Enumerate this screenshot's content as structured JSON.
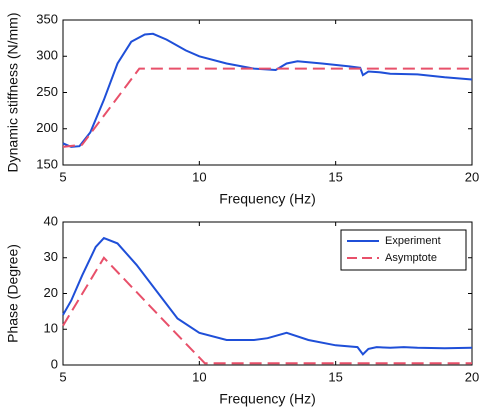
{
  "chart_data": [
    {
      "type": "line",
      "xlabel": "Frequency (Hz)",
      "ylabel": "Dynamic stiffness (N/mm)",
      "xlim": [
        5,
        20
      ],
      "ylim": [
        150,
        350
      ],
      "xticks": [
        5,
        10,
        15,
        20
      ],
      "yticks": [
        150,
        200,
        250,
        300,
        350
      ],
      "grid": false,
      "series": [
        {
          "name": "Experiment",
          "color": "#1f4fd8",
          "dash": false,
          "x": [
            5,
            5.3,
            5.6,
            6,
            6.5,
            7,
            7.5,
            8,
            8.3,
            8.8,
            9.5,
            10,
            11,
            12,
            12.8,
            13.2,
            13.6,
            14.5,
            15.5,
            15.9,
            16,
            16.2,
            16.6,
            17,
            18,
            19,
            20
          ],
          "values": [
            180,
            175,
            176,
            195,
            240,
            290,
            320,
            330,
            331,
            323,
            308,
            300,
            290,
            283,
            281,
            290,
            293,
            290,
            286,
            284,
            274,
            279,
            278,
            276,
            275,
            271,
            268
          ]
        },
        {
          "name": "Asymptote",
          "color": "#e8506a",
          "dash": true,
          "x": [
            5,
            5.7,
            7.8,
            20
          ],
          "values": [
            175,
            178,
            283,
            283
          ]
        }
      ]
    },
    {
      "type": "line",
      "xlabel": "Frequency (Hz)",
      "ylabel": "Phase (Degree)",
      "xlim": [
        5,
        20
      ],
      "ylim": [
        0,
        40
      ],
      "xticks": [
        5,
        10,
        15,
        20
      ],
      "yticks": [
        0,
        10,
        20,
        30,
        40
      ],
      "grid": false,
      "legend": "northeast",
      "series": [
        {
          "name": "Experiment",
          "color": "#1f4fd8",
          "dash": false,
          "x": [
            5,
            5.3,
            5.7,
            6.2,
            6.5,
            7,
            7.7,
            8.5,
            9.2,
            10,
            11,
            12,
            12.5,
            13.2,
            14,
            15,
            15.8,
            16,
            16.2,
            16.5,
            17,
            17.5,
            18,
            19,
            20
          ],
          "values": [
            14,
            18,
            25,
            33,
            35.5,
            34,
            28,
            20,
            13,
            9,
            7,
            7,
            7.5,
            9,
            7,
            5.5,
            5,
            3,
            4.5,
            5,
            4.8,
            5,
            4.8,
            4.7,
            4.8
          ]
        },
        {
          "name": "Asymptote",
          "color": "#e8506a",
          "dash": true,
          "x": [
            5,
            6.5,
            9,
            10.2,
            20
          ],
          "values": [
            11,
            30,
            10,
            0.5,
            0.5
          ]
        }
      ]
    }
  ]
}
